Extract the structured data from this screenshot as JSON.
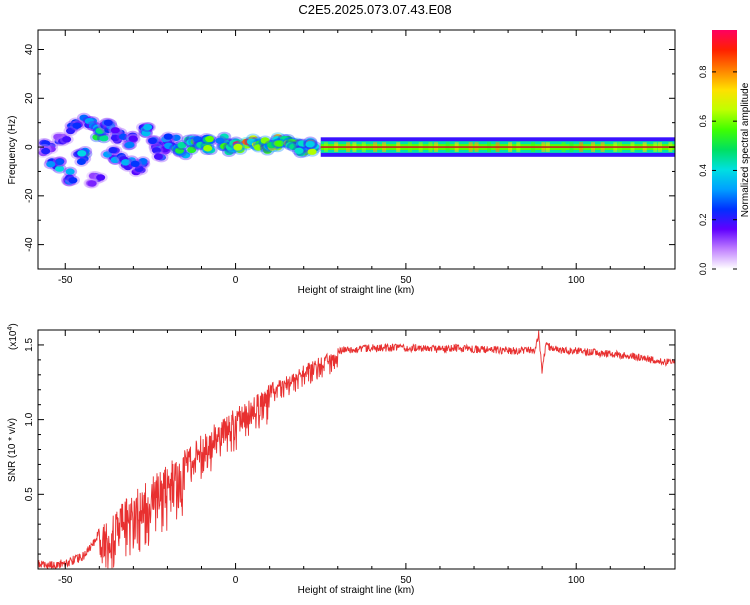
{
  "title": "C2E5.2025.073.07.43.E08",
  "colors": {
    "snr_line": "#e83030",
    "carrier_line": "#cc2020",
    "axis": "#000000"
  },
  "chart_data": [
    {
      "type": "heatmap",
      "name": "spectrogram",
      "xlabel": "Height of straight line (km)",
      "ylabel": "Frequency (Hz)",
      "xlim": [
        -58,
        129
      ],
      "ylim": [
        -50,
        48
      ],
      "xticks": [
        -50,
        0,
        50,
        100
      ],
      "yticks": [
        -40,
        -20,
        0,
        20,
        40
      ],
      "colorbar": {
        "label": "Normalized spectral amplitude",
        "range": [
          0,
          0.97
        ],
        "ticks": [
          0.0,
          0.2,
          0.4,
          0.6,
          0.8
        ],
        "tick_labels": [
          "0.0",
          "0.2",
          "0.4",
          "0.6",
          "0.8"
        ],
        "colormap": [
          "#ffffff",
          "#c080ff",
          "#6000ff",
          "#0030ff",
          "#00a0ff",
          "#00e0e0",
          "#00e060",
          "#40ff00",
          "#c0ff00",
          "#ffe000",
          "#ff8000",
          "#ff2000",
          "#ff0060"
        ]
      },
      "carrier_frequency_hz": 0,
      "clusters": [
        {
          "x": -55,
          "y": 0,
          "amp": 0.2
        },
        {
          "x": -53,
          "y": -8,
          "amp": 0.35
        },
        {
          "x": -51,
          "y": 4,
          "amp": 0.2
        },
        {
          "x": -49,
          "y": -12,
          "amp": 0.3
        },
        {
          "x": -47,
          "y": 9,
          "amp": 0.25
        },
        {
          "x": -45,
          "y": -4,
          "amp": 0.4
        },
        {
          "x": -43,
          "y": 10,
          "amp": 0.3
        },
        {
          "x": -41,
          "y": -13,
          "amp": 0.2
        },
        {
          "x": -40,
          "y": 6,
          "amp": 0.45
        },
        {
          "x": -38,
          "y": 8,
          "amp": 0.35
        },
        {
          "x": -36,
          "y": -3,
          "amp": 0.3
        },
        {
          "x": -34,
          "y": 5,
          "amp": 0.25
        },
        {
          "x": -32,
          "y": -6,
          "amp": 0.35
        },
        {
          "x": -30,
          "y": 3,
          "amp": 0.3
        },
        {
          "x": -28,
          "y": -8,
          "amp": 0.25
        },
        {
          "x": -26,
          "y": 6,
          "amp": 0.35
        },
        {
          "x": -24,
          "y": 2,
          "amp": 0.3
        },
        {
          "x": -22,
          "y": -2,
          "amp": 0.25
        },
        {
          "x": -19,
          "y": 2,
          "amp": 0.35
        },
        {
          "x": -16,
          "y": -1,
          "amp": 0.45
        },
        {
          "x": -13,
          "y": 1,
          "amp": 0.5
        },
        {
          "x": -10,
          "y": 3,
          "amp": 0.45
        },
        {
          "x": -7,
          "y": 1,
          "amp": 0.55
        },
        {
          "x": -4,
          "y": 2,
          "amp": 0.5
        },
        {
          "x": -1,
          "y": 0,
          "amp": 0.6
        },
        {
          "x": 2,
          "y": 0,
          "amp": 0.9
        },
        {
          "x": 5,
          "y": 2,
          "amp": 0.6
        },
        {
          "x": 8,
          "y": 1,
          "amp": 0.55
        },
        {
          "x": 11,
          "y": 2,
          "amp": 0.65
        },
        {
          "x": 14,
          "y": 1,
          "amp": 0.6
        },
        {
          "x": 17,
          "y": 2,
          "amp": 0.6
        },
        {
          "x": 20,
          "y": 0,
          "amp": 0.55
        },
        {
          "x": 23,
          "y": 0,
          "amp": 0.6
        }
      ],
      "steady_band": {
        "x_start": 25,
        "x_end": 129,
        "center_amp": 0.95,
        "width_hz": 4
      }
    },
    {
      "type": "line",
      "name": "snr",
      "xlabel": "Height of straight line (km)",
      "ylabel": "SNR (10 * v/v)",
      "scale_label_prefix": "(x10",
      "scale_label_exp": "4",
      "scale_label_suffix": ")",
      "xlim": [
        -58,
        129
      ],
      "ylim": [
        0,
        1.6
      ],
      "xticks": [
        -50,
        0,
        50,
        100
      ],
      "yticks": [
        0.5,
        1.0,
        1.5
      ],
      "ytick_labels": [
        "0.5",
        "1.0",
        "1.5"
      ],
      "x": [
        -58,
        -55,
        -50,
        -45,
        -42,
        -40,
        -38,
        -35,
        -33,
        -30,
        -27,
        -25,
        -22,
        -20,
        -17,
        -15,
        -12,
        -10,
        -7,
        -5,
        -2,
        0,
        3,
        5,
        8,
        10,
        13,
        15,
        18,
        20,
        23,
        25,
        28,
        30,
        33,
        35,
        40,
        45,
        50,
        55,
        60,
        65,
        70,
        75,
        80,
        85,
        88,
        89,
        90,
        91,
        95,
        100,
        105,
        110,
        115,
        120,
        125,
        129
      ],
      "y": [
        0.03,
        0.02,
        0.04,
        0.08,
        0.16,
        0.25,
        0.33,
        0.4,
        0.46,
        0.52,
        0.57,
        0.62,
        0.66,
        0.7,
        0.76,
        0.8,
        0.85,
        0.9,
        0.95,
        1.0,
        1.04,
        1.08,
        1.12,
        1.16,
        1.2,
        1.24,
        1.27,
        1.3,
        1.33,
        1.37,
        1.4,
        1.43,
        1.45,
        1.46,
        1.47,
        1.47,
        1.48,
        1.48,
        1.48,
        1.48,
        1.47,
        1.48,
        1.47,
        1.47,
        1.46,
        1.46,
        1.47,
        1.58,
        1.32,
        1.5,
        1.46,
        1.46,
        1.45,
        1.44,
        1.43,
        1.41,
        1.39,
        1.38
      ],
      "variability": [
        {
          "x_from": -58,
          "x_to": -40,
          "amp": 0.03
        },
        {
          "x_from": -40,
          "x_to": -15,
          "amp": 0.45
        },
        {
          "x_from": -15,
          "x_to": 10,
          "amp": 0.3
        },
        {
          "x_from": 10,
          "x_to": 30,
          "amp": 0.15
        },
        {
          "x_from": 30,
          "x_to": 129,
          "amp": 0.025
        }
      ]
    }
  ]
}
